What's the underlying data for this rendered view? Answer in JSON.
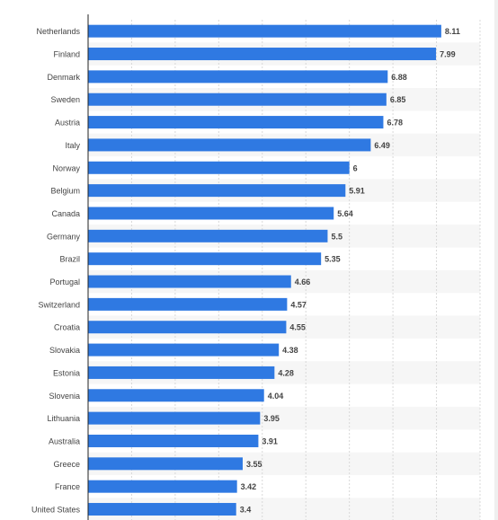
{
  "chart_data": {
    "type": "bar",
    "orientation": "horizontal",
    "title": "",
    "xlabel": "",
    "ylabel": "",
    "categories": [
      "Netherlands",
      "Finland",
      "Denmark",
      "Sweden",
      "Austria",
      "Italy",
      "Norway",
      "Belgium",
      "Canada",
      "Germany",
      "Brazil",
      "Portugal",
      "Switzerland",
      "Croatia",
      "Slovakia",
      "Estonia",
      "Slovenia",
      "Lithuania",
      "Australia",
      "Greece",
      "France",
      "United States"
    ],
    "values": [
      8.11,
      7.99,
      6.88,
      6.85,
      6.78,
      6.49,
      6,
      5.91,
      5.64,
      5.5,
      5.35,
      4.66,
      4.57,
      4.55,
      4.38,
      4.28,
      4.04,
      3.95,
      3.91,
      3.55,
      3.42,
      3.4
    ],
    "value_labels": [
      "8.11",
      "7.99",
      "6.88",
      "6.85",
      "6.78",
      "6.49",
      "6",
      "5.91",
      "5.64",
      "5.5",
      "5.35",
      "4.66",
      "4.57",
      "4.55",
      "4.38",
      "4.28",
      "4.04",
      "3.95",
      "3.91",
      "3.55",
      "3.42",
      "3.4"
    ],
    "xlim": [
      0,
      9
    ],
    "x_gridline_step": 1,
    "grid": true,
    "legend": "none",
    "bar_color": "#2f79e2",
    "row_stripe_color": "#f6f6f6",
    "gridline_color": "#d8d8d8",
    "label_color": "#444444"
  }
}
